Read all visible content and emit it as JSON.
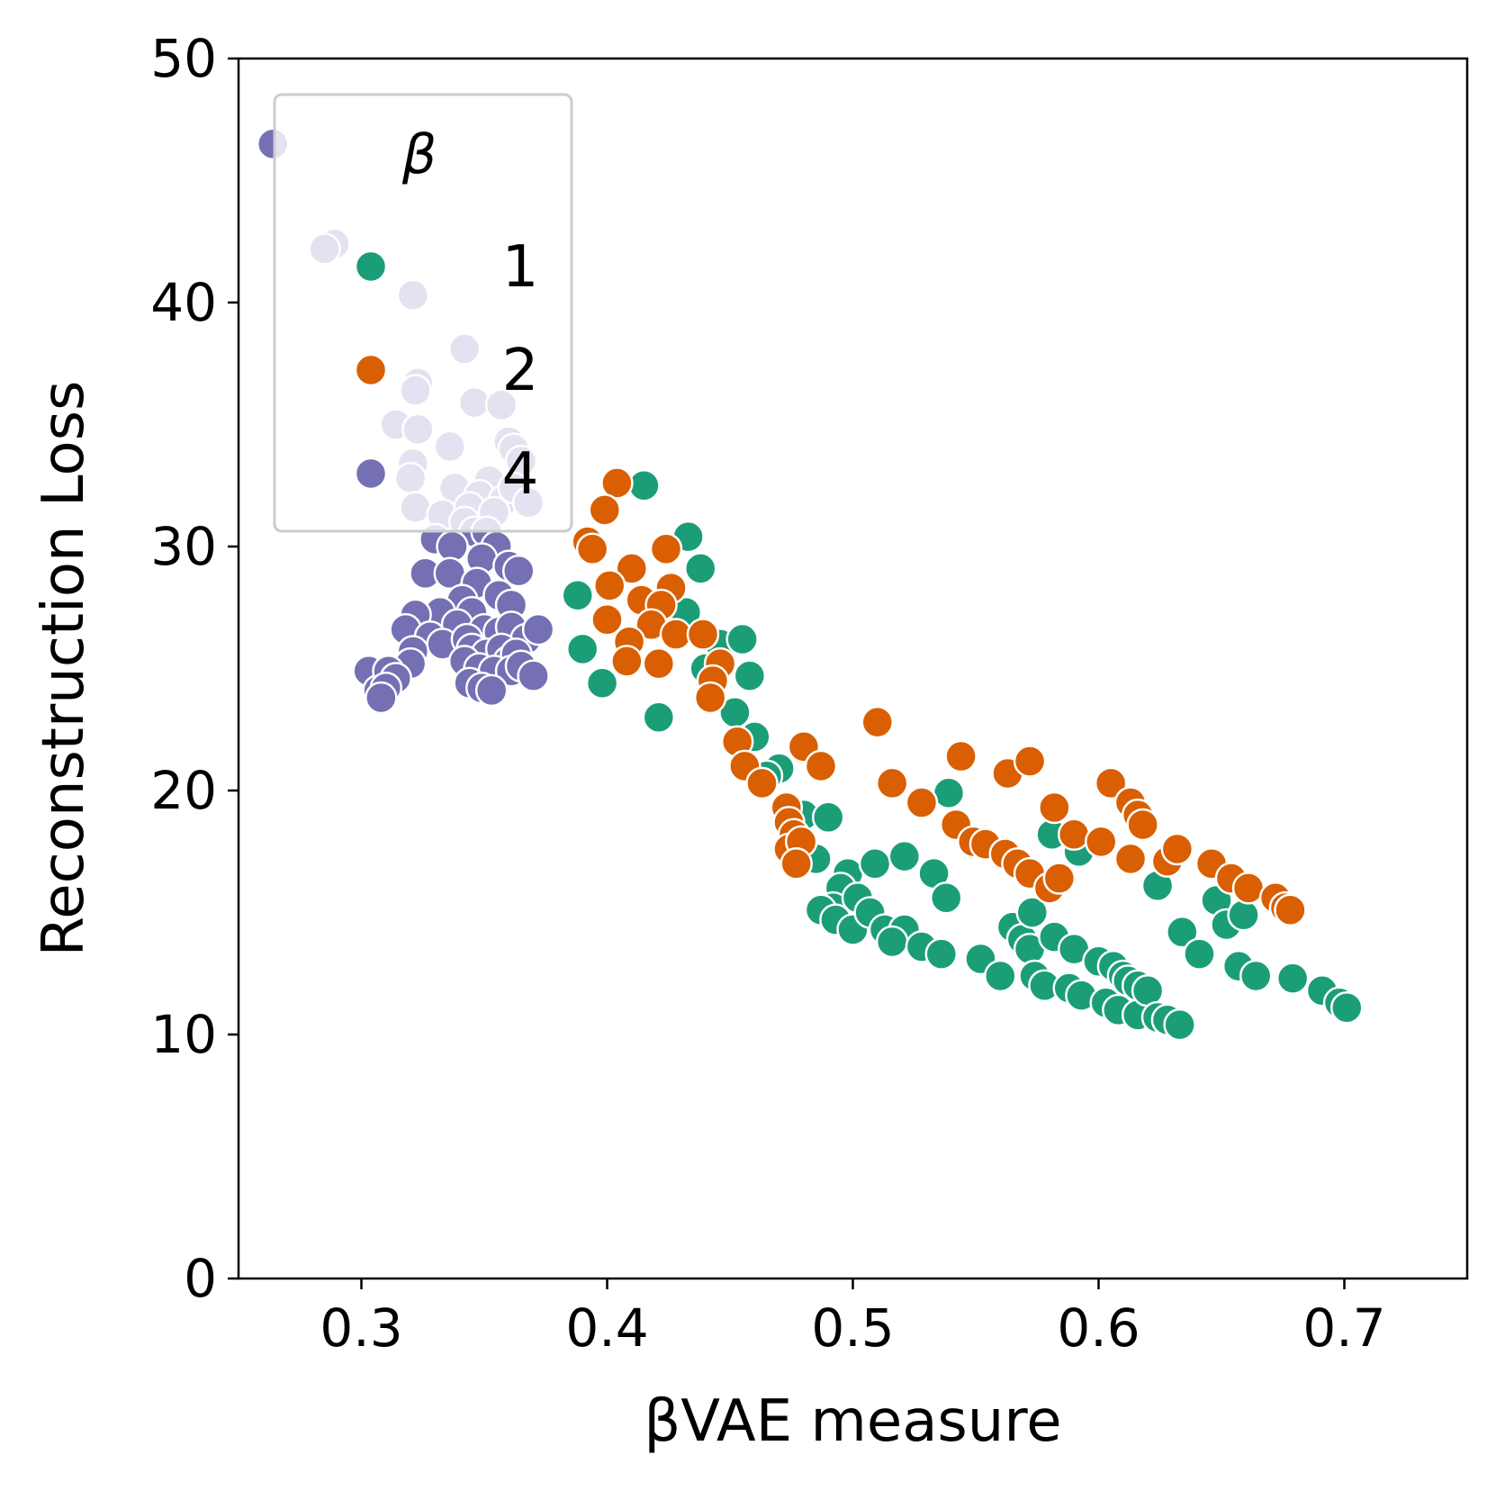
{
  "chart_data": {
    "type": "scatter",
    "xlabel": "βVAE measure",
    "ylabel": "Reconstruction Loss",
    "xlim": [
      0.25,
      0.75
    ],
    "ylim": [
      0,
      50
    ],
    "xticks": [
      "0.3",
      "0.4",
      "0.5",
      "0.6",
      "0.7"
    ],
    "yticks": [
      "0",
      "10",
      "20",
      "30",
      "40",
      "50"
    ],
    "grid": false,
    "legend": {
      "title": "β",
      "placement": "top-left"
    },
    "series": [
      {
        "name": "1",
        "color": "#1b9e77",
        "points": [
          [
            0.415,
            32.5
          ],
          [
            0.433,
            30.4
          ],
          [
            0.438,
            29.1
          ],
          [
            0.388,
            28.0
          ],
          [
            0.432,
            27.3
          ],
          [
            0.39,
            25.8
          ],
          [
            0.398,
            24.4
          ],
          [
            0.421,
            23.0
          ],
          [
            0.446,
            26.0
          ],
          [
            0.455,
            26.2
          ],
          [
            0.44,
            25.0
          ],
          [
            0.458,
            24.7
          ],
          [
            0.452,
            23.2
          ],
          [
            0.46,
            22.2
          ],
          [
            0.47,
            20.9
          ],
          [
            0.465,
            20.6
          ],
          [
            0.48,
            19.0
          ],
          [
            0.49,
            18.9
          ],
          [
            0.485,
            17.2
          ],
          [
            0.498,
            16.6
          ],
          [
            0.495,
            16.0
          ],
          [
            0.492,
            15.2
          ],
          [
            0.502,
            15.6
          ],
          [
            0.509,
            17.0
          ],
          [
            0.487,
            15.1
          ],
          [
            0.493,
            14.7
          ],
          [
            0.5,
            14.3
          ],
          [
            0.507,
            15.0
          ],
          [
            0.513,
            14.3
          ],
          [
            0.521,
            17.3
          ],
          [
            0.533,
            16.6
          ],
          [
            0.538,
            15.6
          ],
          [
            0.521,
            14.3
          ],
          [
            0.516,
            13.8
          ],
          [
            0.528,
            13.6
          ],
          [
            0.536,
            13.3
          ],
          [
            0.539,
            19.9
          ],
          [
            0.552,
            13.1
          ],
          [
            0.56,
            12.4
          ],
          [
            0.565,
            14.4
          ],
          [
            0.569,
            13.9
          ],
          [
            0.572,
            13.5
          ],
          [
            0.573,
            15.0
          ],
          [
            0.574,
            12.4
          ],
          [
            0.578,
            12.0
          ],
          [
            0.581,
            18.2
          ],
          [
            0.582,
            14.0
          ],
          [
            0.588,
            11.9
          ],
          [
            0.59,
            13.5
          ],
          [
            0.593,
            11.6
          ],
          [
            0.592,
            17.5
          ],
          [
            0.6,
            13.0
          ],
          [
            0.603,
            11.3
          ],
          [
            0.606,
            12.8
          ],
          [
            0.608,
            11.0
          ],
          [
            0.61,
            12.4
          ],
          [
            0.612,
            12.2
          ],
          [
            0.616,
            12.0
          ],
          [
            0.616,
            10.8
          ],
          [
            0.62,
            11.8
          ],
          [
            0.624,
            16.1
          ],
          [
            0.624,
            10.7
          ],
          [
            0.628,
            10.6
          ],
          [
            0.633,
            10.4
          ],
          [
            0.634,
            14.2
          ],
          [
            0.641,
            13.3
          ],
          [
            0.648,
            15.5
          ],
          [
            0.652,
            14.5
          ],
          [
            0.657,
            12.8
          ],
          [
            0.659,
            14.9
          ],
          [
            0.664,
            12.4
          ],
          [
            0.679,
            12.3
          ],
          [
            0.691,
            11.8
          ],
          [
            0.698,
            11.3
          ],
          [
            0.701,
            11.1
          ]
        ]
      },
      {
        "name": "2",
        "color": "#d95f02",
        "points": [
          [
            0.404,
            32.6
          ],
          [
            0.399,
            31.5
          ],
          [
            0.392,
            30.2
          ],
          [
            0.394,
            29.9
          ],
          [
            0.41,
            29.1
          ],
          [
            0.424,
            29.9
          ],
          [
            0.401,
            28.4
          ],
          [
            0.426,
            28.3
          ],
          [
            0.414,
            27.8
          ],
          [
            0.422,
            27.6
          ],
          [
            0.4,
            27.0
          ],
          [
            0.418,
            26.8
          ],
          [
            0.428,
            26.4
          ],
          [
            0.439,
            26.4
          ],
          [
            0.409,
            26.1
          ],
          [
            0.408,
            25.3
          ],
          [
            0.421,
            25.2
          ],
          [
            0.446,
            25.2
          ],
          [
            0.443,
            24.5
          ],
          [
            0.442,
            23.8
          ],
          [
            0.453,
            22.0
          ],
          [
            0.456,
            21.0
          ],
          [
            0.463,
            20.3
          ],
          [
            0.473,
            19.3
          ],
          [
            0.48,
            21.8
          ],
          [
            0.487,
            21.0
          ],
          [
            0.474,
            18.7
          ],
          [
            0.476,
            18.2
          ],
          [
            0.474,
            17.6
          ],
          [
            0.479,
            17.9
          ],
          [
            0.477,
            17.0
          ],
          [
            0.51,
            22.8
          ],
          [
            0.516,
            20.3
          ],
          [
            0.528,
            19.5
          ],
          [
            0.544,
            21.4
          ],
          [
            0.542,
            18.6
          ],
          [
            0.549,
            17.9
          ],
          [
            0.554,
            17.8
          ],
          [
            0.563,
            20.7
          ],
          [
            0.562,
            17.4
          ],
          [
            0.567,
            17.0
          ],
          [
            0.572,
            16.6
          ],
          [
            0.572,
            21.2
          ],
          [
            0.58,
            16.0
          ],
          [
            0.582,
            19.3
          ],
          [
            0.584,
            16.4
          ],
          [
            0.59,
            18.2
          ],
          [
            0.601,
            17.9
          ],
          [
            0.605,
            20.3
          ],
          [
            0.613,
            19.5
          ],
          [
            0.616,
            19.0
          ],
          [
            0.613,
            17.2
          ],
          [
            0.618,
            18.6
          ],
          [
            0.628,
            17.1
          ],
          [
            0.632,
            17.6
          ],
          [
            0.646,
            17.0
          ],
          [
            0.654,
            16.4
          ],
          [
            0.661,
            16.0
          ],
          [
            0.672,
            15.6
          ],
          [
            0.676,
            15.2
          ],
          [
            0.678,
            15.1
          ]
        ]
      },
      {
        "name": "4",
        "color": "#7570b3",
        "points": [
          [
            0.264,
            46.5
          ],
          [
            0.289,
            42.4
          ],
          [
            0.285,
            42.2
          ],
          [
            0.321,
            40.3
          ],
          [
            0.342,
            38.1
          ],
          [
            0.323,
            36.7
          ],
          [
            0.322,
            36.4
          ],
          [
            0.346,
            35.9
          ],
          [
            0.357,
            35.8
          ],
          [
            0.314,
            35.0
          ],
          [
            0.323,
            34.8
          ],
          [
            0.336,
            34.1
          ],
          [
            0.36,
            34.3
          ],
          [
            0.362,
            34.0
          ],
          [
            0.365,
            33.5
          ],
          [
            0.321,
            33.4
          ],
          [
            0.32,
            32.8
          ],
          [
            0.338,
            32.4
          ],
          [
            0.352,
            32.7
          ],
          [
            0.348,
            32.1
          ],
          [
            0.358,
            31.9
          ],
          [
            0.362,
            32.4
          ],
          [
            0.368,
            31.8
          ],
          [
            0.322,
            31.6
          ],
          [
            0.333,
            31.3
          ],
          [
            0.344,
            31.6
          ],
          [
            0.354,
            31.4
          ],
          [
            0.342,
            31.0
          ],
          [
            0.346,
            30.6
          ],
          [
            0.33,
            30.3
          ],
          [
            0.337,
            30.0
          ],
          [
            0.351,
            30.6
          ],
          [
            0.355,
            30.0
          ],
          [
            0.349,
            29.5
          ],
          [
            0.36,
            29.2
          ],
          [
            0.364,
            29.0
          ],
          [
            0.326,
            28.9
          ],
          [
            0.336,
            28.9
          ],
          [
            0.347,
            28.5
          ],
          [
            0.356,
            28.0
          ],
          [
            0.361,
            27.6
          ],
          [
            0.341,
            27.8
          ],
          [
            0.345,
            27.3
          ],
          [
            0.332,
            27.3
          ],
          [
            0.322,
            27.2
          ],
          [
            0.339,
            26.8
          ],
          [
            0.35,
            26.6
          ],
          [
            0.356,
            26.5
          ],
          [
            0.361,
            26.7
          ],
          [
            0.367,
            26.2
          ],
          [
            0.372,
            26.6
          ],
          [
            0.318,
            26.6
          ],
          [
            0.328,
            26.3
          ],
          [
            0.333,
            26.0
          ],
          [
            0.343,
            26.2
          ],
          [
            0.345,
            25.8
          ],
          [
            0.351,
            25.6
          ],
          [
            0.357,
            25.8
          ],
          [
            0.36,
            25.3
          ],
          [
            0.363,
            25.6
          ],
          [
            0.321,
            25.7
          ],
          [
            0.32,
            25.2
          ],
          [
            0.342,
            25.3
          ],
          [
            0.348,
            25.0
          ],
          [
            0.354,
            24.9
          ],
          [
            0.361,
            24.9
          ],
          [
            0.365,
            25.1
          ],
          [
            0.37,
            24.7
          ],
          [
            0.344,
            24.4
          ],
          [
            0.349,
            24.2
          ],
          [
            0.353,
            24.1
          ],
          [
            0.303,
            24.9
          ],
          [
            0.307,
            24.1
          ],
          [
            0.311,
            24.9
          ],
          [
            0.314,
            24.6
          ],
          [
            0.31,
            24.2
          ],
          [
            0.308,
            23.8
          ]
        ]
      }
    ]
  }
}
